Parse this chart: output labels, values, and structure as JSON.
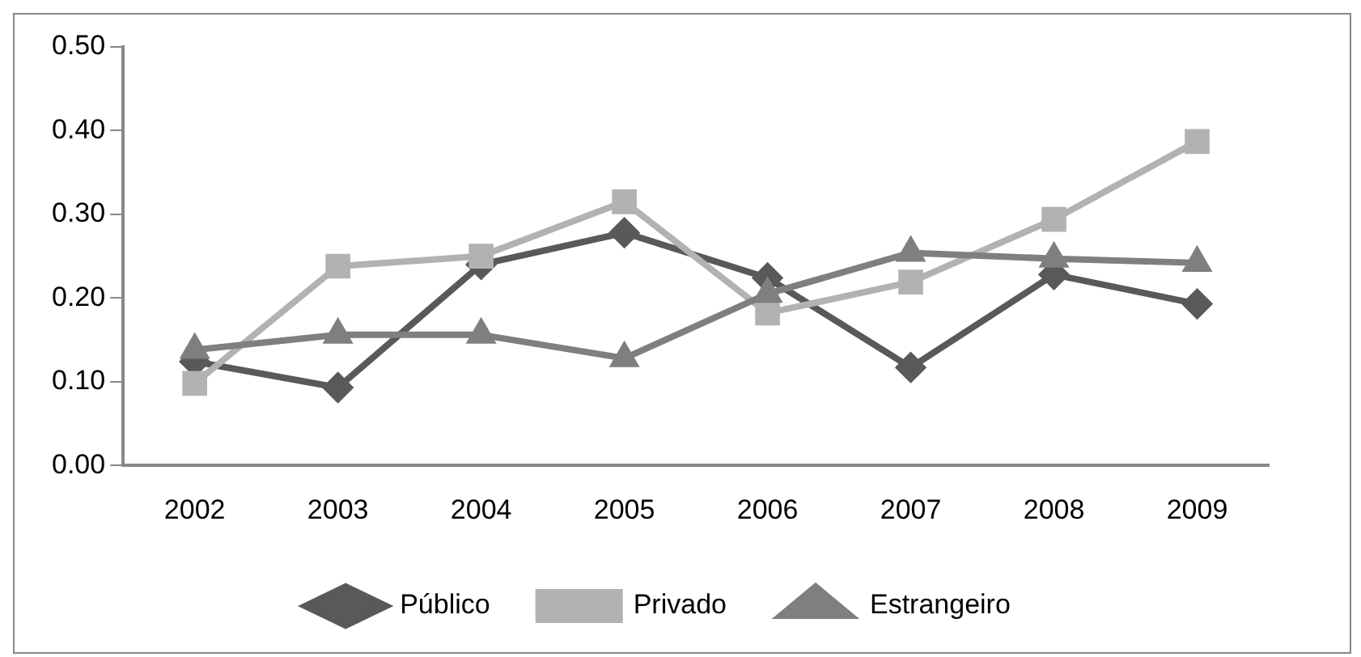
{
  "chart_data": {
    "type": "line",
    "categories": [
      "2002",
      "2003",
      "2004",
      "2005",
      "2006",
      "2007",
      "2008",
      "2009"
    ],
    "series": [
      {
        "name": "Público",
        "color": "#595959",
        "marker": "diamond",
        "values": [
          0.124,
          0.093,
          0.24,
          0.278,
          0.224,
          0.117,
          0.228,
          0.193
        ]
      },
      {
        "name": "Privado",
        "color": "#b2b2b2",
        "marker": "square",
        "values": [
          0.098,
          0.238,
          0.25,
          0.315,
          0.182,
          0.219,
          0.294,
          0.387
        ]
      },
      {
        "name": "Estrangeiro",
        "color": "#7f7f7f",
        "marker": "triangle",
        "values": [
          0.138,
          0.156,
          0.156,
          0.128,
          0.205,
          0.254,
          0.247,
          0.242
        ]
      }
    ],
    "ylim": [
      0,
      0.5
    ],
    "yticks": [
      {
        "value": 0,
        "label": "0.00"
      },
      {
        "value": 0.1,
        "label": "0.10"
      },
      {
        "value": 0.2,
        "label": "0.20"
      },
      {
        "value": 0.3,
        "label": "0.30"
      },
      {
        "value": 0.4,
        "label": "0.40"
      },
      {
        "value": 0.5,
        "label": "0.50"
      }
    ],
    "grid": false,
    "legend": "bottom",
    "line_style": "solid"
  }
}
